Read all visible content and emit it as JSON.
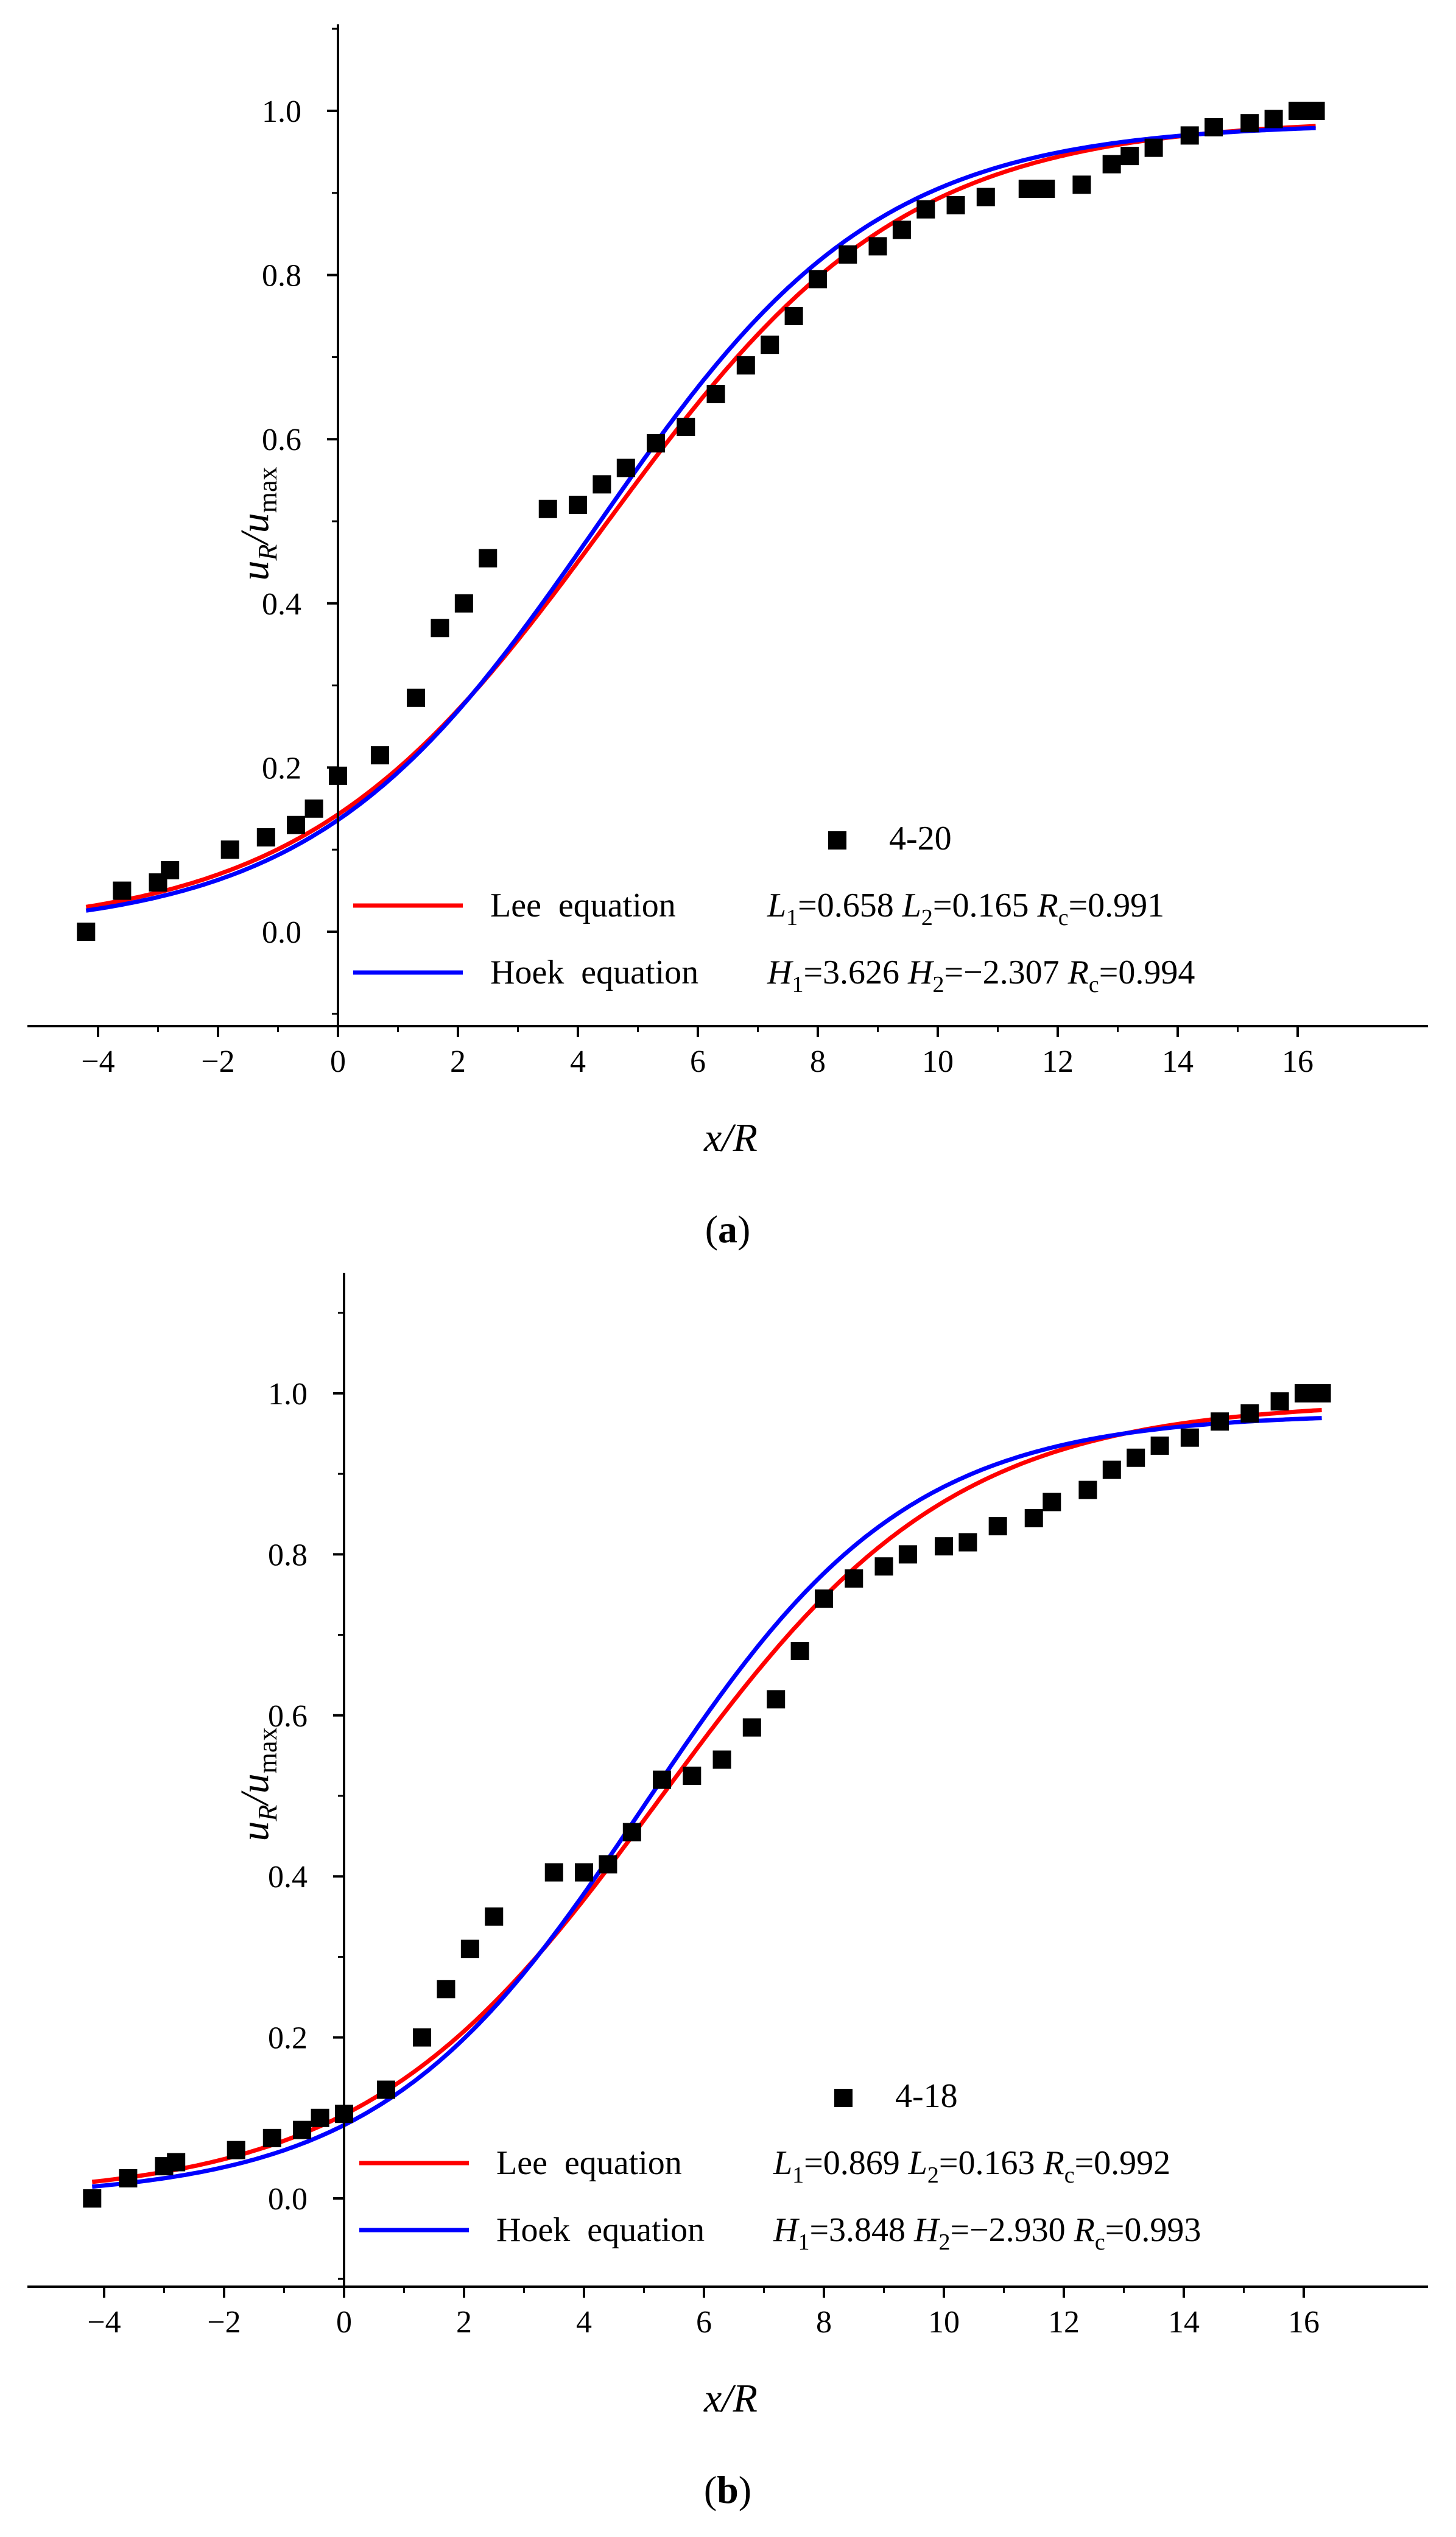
{
  "chart_data": [
    {
      "type": "scatter",
      "panel_label": "a",
      "xlabel": "x/R",
      "ylabel": "u_R/u_max",
      "xlim": [
        -4.6,
        17.0
      ],
      "ylim": [
        -0.1,
        1.1
      ],
      "xticks": [
        "−4",
        "−2",
        "0",
        "2",
        "4",
        "6",
        "8",
        "10",
        "12",
        "14",
        "16"
      ],
      "yticks": [
        "0.0",
        "0.2",
        "0.4",
        "0.6",
        "0.8",
        "1.0"
      ],
      "xtick_values": [
        -4,
        -2,
        0,
        2,
        4,
        6,
        8,
        10,
        12,
        14,
        16
      ],
      "ytick_values": [
        0.0,
        0.2,
        0.4,
        0.6,
        0.8,
        1.0
      ],
      "series": [
        {
          "name": "4-20",
          "kind": "points",
          "color": "#000000",
          "x": [
            -4.2,
            -3.6,
            -3.0,
            -2.8,
            -1.8,
            -1.2,
            -0.7,
            -0.4,
            0.0,
            0.7,
            1.3,
            1.7,
            2.1,
            2.5,
            3.5,
            4.0,
            4.4,
            4.8,
            5.3,
            5.8,
            6.3,
            6.8,
            7.2,
            7.6,
            8.0,
            8.5,
            9.0,
            9.4,
            9.8,
            10.3,
            10.8,
            11.5,
            11.8,
            12.4,
            12.9,
            13.2,
            13.6,
            14.2,
            14.6,
            15.2,
            15.6,
            16.0,
            16.3
          ],
          "y": [
            0.0,
            0.05,
            0.06,
            0.075,
            0.1,
            0.115,
            0.13,
            0.15,
            0.19,
            0.215,
            0.285,
            0.37,
            0.4,
            0.455,
            0.515,
            0.52,
            0.545,
            0.565,
            0.595,
            0.615,
            0.655,
            0.69,
            0.715,
            0.75,
            0.795,
            0.825,
            0.835,
            0.855,
            0.88,
            0.885,
            0.895,
            0.905,
            0.905,
            0.91,
            0.935,
            0.945,
            0.955,
            0.97,
            0.98,
            0.985,
            0.99,
            1.0,
            1.0
          ]
        },
        {
          "name": "Lee equation",
          "kind": "line",
          "model": "lee",
          "color": "#ff0000"
        },
        {
          "name": "Hoek equation",
          "kind": "line",
          "model": "hoek",
          "color": "#0000ff"
        }
      ],
      "legend": {
        "placement": "lower-right",
        "points_label": "4-20",
        "lee_label": "Lee equation",
        "hoek_label": "Hoek equation",
        "lee_params": [
          {
            "sym": "L",
            "sub": "1",
            "val": "=0.658"
          },
          {
            "sym": "L",
            "sub": "2",
            "val": "=0.165"
          },
          {
            "sym": "R",
            "sub": "c",
            "val": "=0.991"
          }
        ],
        "hoek_params": [
          {
            "sym": "H",
            "sub": "1",
            "val": "=3.626"
          },
          {
            "sym": "H",
            "sub": "2",
            "val": "=−2.307"
          },
          {
            "sym": "R",
            "sub": "c",
            "val": "=0.994"
          }
        ]
      }
    },
    {
      "type": "scatter",
      "panel_label": "b",
      "xlabel": "x/R",
      "ylabel": "u_R/u_max",
      "xlim": [
        -4.6,
        17.0
      ],
      "ylim": [
        -0.1,
        1.1
      ],
      "xticks": [
        "−4",
        "−2",
        "0",
        "2",
        "4",
        "6",
        "8",
        "10",
        "12",
        "14",
        "16"
      ],
      "yticks": [
        "0.0",
        "0.2",
        "0.4",
        "0.6",
        "0.8",
        "1.0"
      ],
      "xtick_values": [
        -4,
        -2,
        0,
        2,
        4,
        6,
        8,
        10,
        12,
        14,
        16
      ],
      "ytick_values": [
        0.0,
        0.2,
        0.4,
        0.6,
        0.8,
        1.0
      ],
      "series": [
        {
          "name": "4-18",
          "kind": "points",
          "color": "#000000",
          "x": [
            -4.2,
            -3.6,
            -3.0,
            -2.8,
            -1.8,
            -1.2,
            -0.7,
            -0.4,
            0.0,
            0.7,
            1.3,
            1.7,
            2.1,
            2.5,
            3.5,
            4.0,
            4.4,
            4.8,
            5.3,
            5.8,
            6.3,
            6.8,
            7.2,
            7.6,
            8.0,
            8.5,
            9.0,
            9.4,
            10.0,
            10.4,
            10.9,
            11.5,
            11.8,
            12.4,
            12.8,
            13.2,
            13.6,
            14.1,
            14.6,
            15.1,
            15.6,
            16.0,
            16.3
          ],
          "y": [
            0.0,
            0.025,
            0.04,
            0.045,
            0.06,
            0.075,
            0.085,
            0.1,
            0.105,
            0.135,
            0.2,
            0.26,
            0.31,
            0.35,
            0.405,
            0.405,
            0.415,
            0.455,
            0.52,
            0.525,
            0.545,
            0.585,
            0.62,
            0.68,
            0.745,
            0.77,
            0.785,
            0.8,
            0.81,
            0.815,
            0.835,
            0.845,
            0.865,
            0.88,
            0.905,
            0.92,
            0.935,
            0.945,
            0.965,
            0.975,
            0.99,
            1.0,
            1.0
          ]
        },
        {
          "name": "Lee equation",
          "kind": "line",
          "model": "lee",
          "color": "#ff0000"
        },
        {
          "name": "Hoek equation",
          "kind": "line",
          "model": "hoek",
          "color": "#0000ff"
        }
      ],
      "legend": {
        "placement": "lower-right",
        "points_label": "4-18",
        "lee_label": "Lee equation",
        "hoek_label": "Hoek equation",
        "lee_params": [
          {
            "sym": "L",
            "sub": "1",
            "val": "=0.869"
          },
          {
            "sym": "L",
            "sub": "2",
            "val": "=0.163"
          },
          {
            "sym": "R",
            "sub": "c",
            "val": "=0.992"
          }
        ],
        "hoek_params": [
          {
            "sym": "H",
            "sub": "1",
            "val": "=3.848"
          },
          {
            "sym": "H",
            "sub": "2",
            "val": "=−2.930"
          },
          {
            "sym": "R",
            "sub": "c",
            "val": "=0.993"
          }
        ]
      }
    }
  ]
}
